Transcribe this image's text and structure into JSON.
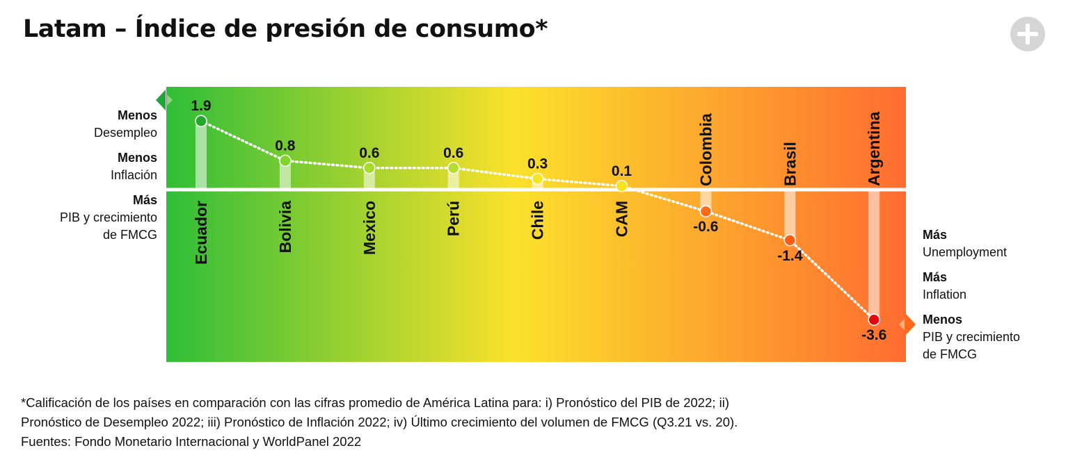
{
  "title": "Latam – Índice de presión de consumo*",
  "left_legend": {
    "g1_bold": "Menos",
    "g1_text": "Desempleo",
    "g2_bold": "Menos",
    "g2_text": "Inflación",
    "g3_bold": "Más",
    "g3_line1": "PIB y crecimiento",
    "g3_line2": "de FMCG"
  },
  "right_legend": {
    "g1_bold": "Más",
    "g1_text": "Unemployment",
    "g2_bold": "Más",
    "g2_text": "Inflation",
    "g3_bold": "Menos",
    "g3_line1": "PIB y crecimiento",
    "g3_line2": "de FMCG"
  },
  "footnote": {
    "line1": "*Calificación de los países en comparación con las cifras promedio de América Latina para: i) Pronóstico del PIB de 2022; ii)",
    "line2": "Pronóstico de Desempleo 2022; iii) Pronóstico de Inflación 2022; iv) Último crecimiento del volumen de FMCG (Q3.21 vs. 20).",
    "line3": "Fuentes: Fondo Monetario Internacional y WorldPanel 2022"
  },
  "colors": {
    "gradient_left": "#2fbe37",
    "gradient_mid": "#fbe12b",
    "gradient_right": "#ff6c30",
    "green_marker": "#2aa52a",
    "orange_marker": "#ff6a1a",
    "baseline": "#ffffff"
  },
  "chart_data": {
    "type": "line",
    "categories": [
      "Ecuador",
      "Bolivia",
      "Mexico",
      "Perú",
      "Chile",
      "CAM",
      "Colombia",
      "Brasil",
      "Argentina"
    ],
    "values": [
      1.9,
      0.8,
      0.6,
      0.6,
      0.3,
      0.1,
      -0.6,
      -1.4,
      -3.6
    ],
    "value_labels": [
      "1.9",
      "0.8",
      "0.6",
      "0.6",
      "0.3",
      "0.1",
      "-0.6",
      "-1.4",
      "-3.6"
    ],
    "point_colors": [
      "#22a82a",
      "#7fd629",
      "#a8dc2c",
      "#b4df2f",
      "#f5e628",
      "#f7e21b",
      "#ff6a1a",
      "#ff5c15",
      "#e3080e"
    ],
    "ylim": [
      -4.2,
      2.6
    ],
    "baseline": 0,
    "grid": false,
    "legend": "none"
  }
}
